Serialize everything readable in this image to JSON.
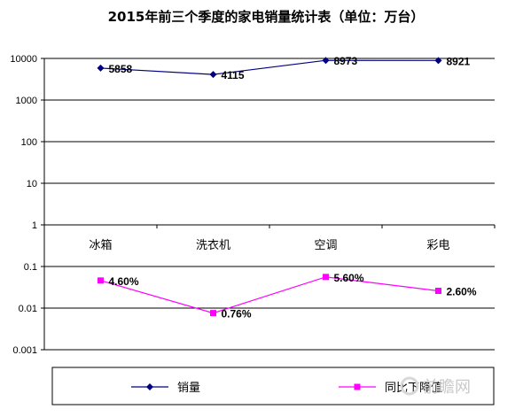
{
  "chart_data": {
    "type": "line",
    "title": "2015年前三个季度的家电销量统计表（单位：万台）",
    "y_scale": "log",
    "ylim": [
      0.001,
      10000
    ],
    "y_ticks": [
      "10000",
      "1000",
      "100",
      "10",
      "1",
      "0.1",
      "0.01",
      "0.001"
    ],
    "categories": [
      "冰箱",
      "洗衣机",
      "空调",
      "彩电"
    ],
    "series": [
      {
        "name": "销量",
        "color": "#000080",
        "marker": "diamond",
        "values": [
          5858,
          4115,
          8973,
          8921
        ],
        "labels": [
          "5858",
          "4115",
          "8973",
          "8921"
        ]
      },
      {
        "name": "同比下降值",
        "color": "#ff00ff",
        "marker": "square",
        "values": [
          0.046,
          0.0076,
          0.056,
          0.026
        ],
        "labels": [
          "4.60%",
          "0.76%",
          "5.60%",
          "2.60%"
        ]
      }
    ],
    "grid": true,
    "legend_position": "bottom"
  },
  "watermark": "前瞻网"
}
